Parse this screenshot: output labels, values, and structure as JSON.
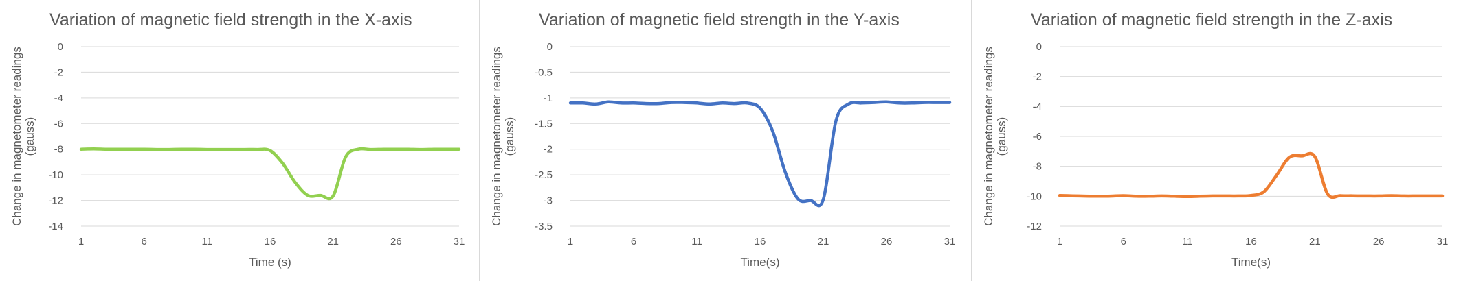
{
  "chart_data": [
    {
      "type": "line",
      "title": "Variation of magnetic field strength in the X-axis",
      "xlabel": "Time (s)",
      "ylabel": [
        "Change in magnetometer readings",
        "(gauss)"
      ],
      "xlim": [
        1,
        31
      ],
      "ylim": [
        -14,
        0
      ],
      "xticks": [
        1,
        6,
        11,
        16,
        21,
        26,
        31
      ],
      "yticks": [
        0,
        -2,
        -4,
        -6,
        -8,
        -10,
        -12,
        -14
      ],
      "grid": true,
      "color": "#92d050",
      "series": [
        {
          "x": [
            1,
            2,
            3,
            4,
            5,
            6,
            7,
            8,
            9,
            10,
            11,
            12,
            13,
            14,
            15,
            16,
            17,
            18,
            19,
            20,
            21,
            22,
            23,
            24,
            25,
            26,
            27,
            28,
            29,
            30,
            31
          ],
          "values": [
            -8.0,
            -7.97,
            -8.0,
            -8.0,
            -8.0,
            -8.0,
            -8.02,
            -8.02,
            -8.0,
            -8.0,
            -8.02,
            -8.02,
            -8.02,
            -8.02,
            -8.02,
            -8.1,
            -9.1,
            -10.6,
            -11.6,
            -11.6,
            -11.65,
            -8.6,
            -8.0,
            -8.02,
            -8.0,
            -8.0,
            -8.0,
            -8.02,
            -8.0,
            -8.0,
            -8.0
          ]
        }
      ]
    },
    {
      "type": "line",
      "title": "Variation of magnetic field strength in the Y-axis",
      "xlabel": "Time(s)",
      "ylabel": [
        "Change in magnetometer readings",
        "(gauss)"
      ],
      "xlim": [
        1,
        31
      ],
      "ylim": [
        -3.5,
        0
      ],
      "xticks": [
        1,
        6,
        11,
        16,
        21,
        26,
        31
      ],
      "yticks": [
        0,
        -0.5,
        -1,
        -1.5,
        -2,
        -2.5,
        -3,
        -3.5
      ],
      "grid": true,
      "color": "#4472c4",
      "series": [
        {
          "x": [
            1,
            2,
            3,
            4,
            5,
            6,
            7,
            8,
            9,
            10,
            11,
            12,
            13,
            14,
            15,
            16,
            17,
            18,
            19,
            20,
            21,
            22,
            23,
            24,
            25,
            26,
            27,
            28,
            29,
            30,
            31
          ],
          "values": [
            -1.1,
            -1.1,
            -1.12,
            -1.08,
            -1.1,
            -1.1,
            -1.11,
            -1.11,
            -1.09,
            -1.09,
            -1.1,
            -1.12,
            -1.1,
            -1.11,
            -1.1,
            -1.2,
            -1.65,
            -2.45,
            -2.97,
            -3.0,
            -2.98,
            -1.45,
            -1.12,
            -1.1,
            -1.09,
            -1.08,
            -1.1,
            -1.1,
            -1.09,
            -1.09,
            -1.09
          ]
        }
      ]
    },
    {
      "type": "line",
      "title": "Variation of magnetic field strength in the Z-axis",
      "xlabel": "Time(s)",
      "ylabel": [
        "Change in magnetometer readings",
        "(gauss)"
      ],
      "xlim": [
        1,
        31
      ],
      "ylim": [
        -12,
        0
      ],
      "xticks": [
        1,
        6,
        11,
        16,
        21,
        26,
        31
      ],
      "yticks": [
        0,
        -2,
        -4,
        -6,
        -8,
        -10,
        -12
      ],
      "grid": true,
      "color": "#ed7d31",
      "series": [
        {
          "x": [
            1,
            2,
            3,
            4,
            5,
            6,
            7,
            8,
            9,
            10,
            11,
            12,
            13,
            14,
            15,
            16,
            17,
            18,
            19,
            20,
            21,
            22,
            23,
            24,
            25,
            26,
            27,
            28,
            29,
            30,
            31
          ],
          "values": [
            -9.95,
            -9.97,
            -9.99,
            -10.0,
            -9.99,
            -9.96,
            -10.0,
            -10.0,
            -9.98,
            -10.0,
            -10.02,
            -10.0,
            -9.98,
            -9.98,
            -9.98,
            -9.95,
            -9.7,
            -8.6,
            -7.4,
            -7.3,
            -7.35,
            -9.85,
            -9.96,
            -9.97,
            -9.98,
            -9.98,
            -9.96,
            -9.98,
            -9.98,
            -9.98,
            -9.98
          ]
        }
      ]
    }
  ]
}
